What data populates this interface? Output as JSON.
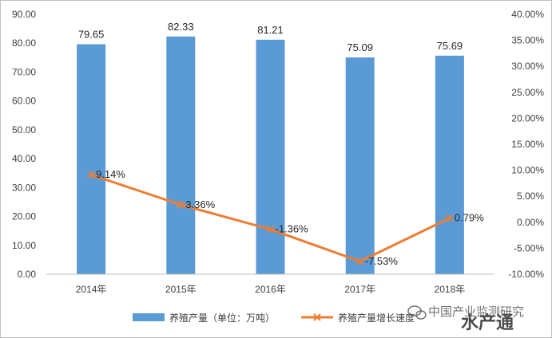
{
  "chart_data": {
    "type": "bar",
    "categories": [
      "2014年",
      "2015年",
      "2016年",
      "2017年",
      "2018年"
    ],
    "series": [
      {
        "name": "养殖产量（单位：万吨）",
        "type": "bar",
        "axis": "left",
        "color": "#5b9bd5",
        "values": [
          79.65,
          82.33,
          81.21,
          75.09,
          75.69
        ],
        "labels": [
          "79.65",
          "82.33",
          "81.21",
          "75.09",
          "75.69"
        ]
      },
      {
        "name": "养殖产量增长速度",
        "type": "line",
        "axis": "right",
        "color": "#ed7d31",
        "values": [
          9.14,
          3.36,
          -1.36,
          -7.53,
          0.79
        ],
        "labels": [
          "9.14%",
          "3.36%",
          "-1.36%",
          "-7.53%",
          "0.79%"
        ]
      }
    ],
    "y_left": {
      "ylim": [
        0,
        90
      ],
      "ticks": [
        "0.00",
        "10.00",
        "20.00",
        "30.00",
        "40.00",
        "50.00",
        "60.00",
        "70.00",
        "80.00",
        "90.00"
      ]
    },
    "y_right": {
      "ylim": [
        -10,
        40
      ],
      "ticks": [
        "-10.00%",
        "-5.00%",
        "0.00%",
        "5.00%",
        "10.00%",
        "15.00%",
        "20.00%",
        "25.00%",
        "30.00%",
        "35.00%",
        "40.00%"
      ]
    },
    "grid": false,
    "legend_position": "bottom"
  },
  "watermark": {
    "small_text": "中国产业监测研究",
    "big_text": "水产通"
  }
}
